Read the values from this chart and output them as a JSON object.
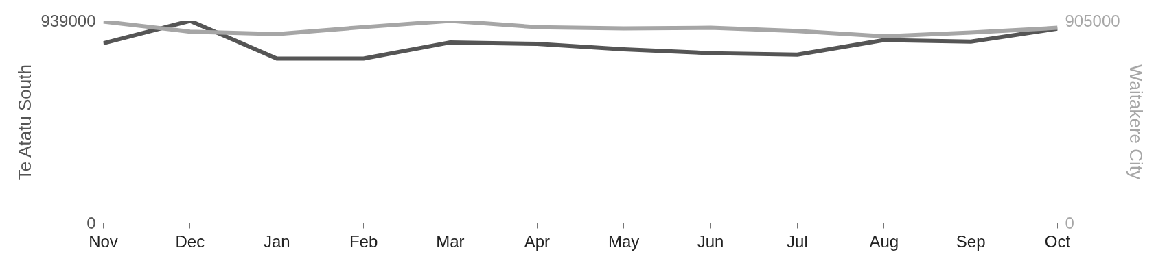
{
  "chart_data": {
    "type": "line",
    "categories": [
      "Nov",
      "Dec",
      "Jan",
      "Feb",
      "Mar",
      "Apr",
      "May",
      "Jun",
      "Jul",
      "Aug",
      "Sep",
      "Oct"
    ],
    "ylabel": "Te Atatu South",
    "y2label": "Waitakere City",
    "ylim": [
      0,
      939000
    ],
    "yticks": [
      0,
      939000
    ],
    "y2lim": [
      0,
      905000
    ],
    "y2ticks": [
      0,
      905000
    ],
    "grid": false,
    "marker": "none",
    "line_style": "solid",
    "series": [
      {
        "color": "#555555",
        "values": [
          835000,
          939000,
          764000,
          764000,
          839000,
          832000,
          807000,
          789000,
          782000,
          850000,
          843000,
          903000
        ]
      },
      {
        "color": "#a6a6a6",
        "axis": "y2",
        "values": [
          902000,
          857000,
          846000,
          877000,
          905000,
          877000,
          871000,
          874000,
          860000,
          836000,
          853000,
          874000
        ]
      }
    ]
  }
}
